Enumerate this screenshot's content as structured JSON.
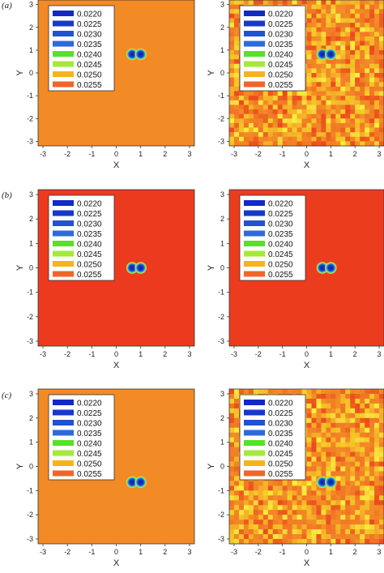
{
  "rows": [
    {
      "label": "(a)"
    },
    {
      "label": "(b)"
    },
    {
      "label": "(c)"
    }
  ],
  "legend_colors": [
    "#1428c8",
    "#1838c8",
    "#2252d0",
    "#2e6ad8",
    "#58e02a",
    "#a6e83a",
    "#f5b41e",
    "#f26428"
  ],
  "chart_data": [
    {
      "type": "heatmap",
      "row": "(a)",
      "column": "left",
      "xlabel": "X",
      "ylabel": "Y",
      "xlim": [
        -3.2,
        3.2
      ],
      "ylim": [
        -3.2,
        3.2
      ],
      "xticks": [
        -3,
        -2,
        -1,
        0,
        1,
        2,
        3
      ],
      "yticks": [
        3,
        2,
        1,
        0,
        -1,
        -2,
        -3
      ],
      "legend": [
        "0.0220",
        "0.0225",
        "0.0230",
        "0.0235",
        "0.0240",
        "0.0245",
        "0.0250",
        "0.0255"
      ],
      "legend_position": "top-left",
      "background": "uniform",
      "background_color": "#f28a26",
      "features": [
        {
          "x": 0.65,
          "y": 0.82
        },
        {
          "x": 1.0,
          "y": 0.82
        }
      ]
    },
    {
      "type": "heatmap",
      "row": "(a)",
      "column": "right",
      "xlabel": "X",
      "ylabel": "Y",
      "xlim": [
        -3.2,
        3.2
      ],
      "ylim": [
        -3.2,
        3.2
      ],
      "xticks": [
        -3,
        -2,
        -1,
        0,
        1,
        2,
        3
      ],
      "yticks": [
        3,
        2,
        1,
        0,
        -1,
        -2,
        -3
      ],
      "legend": [
        "0.0220",
        "0.0225",
        "0.0230",
        "0.0235",
        "0.0240",
        "0.0245",
        "0.0250",
        "0.0255"
      ],
      "legend_position": "top-left",
      "background": "noisy",
      "background_color": "#f07a22",
      "features": [
        {
          "x": 0.65,
          "y": 0.82
        },
        {
          "x": 1.0,
          "y": 0.82
        }
      ]
    },
    {
      "type": "heatmap",
      "row": "(b)",
      "column": "left",
      "xlabel": "X",
      "ylabel": "Y",
      "xlim": [
        -3.2,
        3.2
      ],
      "ylim": [
        -3.2,
        3.2
      ],
      "xticks": [
        -3,
        -2,
        -1,
        0,
        1,
        2,
        3
      ],
      "yticks": [
        3,
        2,
        1,
        0,
        -1,
        -2,
        -3
      ],
      "legend": [
        "0.0220",
        "0.0225",
        "0.0230",
        "0.0235",
        "0.0240",
        "0.0245",
        "0.0250",
        "0.0255"
      ],
      "legend_position": "top-left",
      "background": "uniform",
      "background_color": "#ec3a1e",
      "features": [
        {
          "x": 0.65,
          "y": 0.0
        },
        {
          "x": 1.0,
          "y": 0.0
        }
      ]
    },
    {
      "type": "heatmap",
      "row": "(b)",
      "column": "right",
      "xlabel": "X",
      "ylabel": "Y",
      "xlim": [
        -3.2,
        3.2
      ],
      "ylim": [
        -3.2,
        3.2
      ],
      "xticks": [
        -3,
        -2,
        -1,
        0,
        1,
        2,
        3
      ],
      "yticks": [
        3,
        2,
        1,
        0,
        -1,
        -2,
        -3
      ],
      "legend": [
        "0.0220",
        "0.0225",
        "0.0230",
        "0.0235",
        "0.0240",
        "0.0245",
        "0.0250",
        "0.0255"
      ],
      "legend_position": "top-left",
      "background": "uniform",
      "background_color": "#ec3c1e",
      "features": [
        {
          "x": 0.65,
          "y": 0.0
        },
        {
          "x": 1.0,
          "y": 0.0
        }
      ]
    },
    {
      "type": "heatmap",
      "row": "(c)",
      "column": "left",
      "xlabel": "X",
      "ylabel": "Y",
      "xlim": [
        -3.2,
        3.2
      ],
      "ylim": [
        -3.2,
        3.2
      ],
      "xticks": [
        -3,
        -2,
        -1,
        0,
        1,
        2,
        3
      ],
      "yticks": [
        3,
        2,
        1,
        0,
        -1,
        -2,
        -3
      ],
      "legend": [
        "0.0220",
        "0.0225",
        "0.0230",
        "0.0235",
        "0.0240",
        "0.0245",
        "0.0250",
        "0.0255"
      ],
      "legend_position": "top-left",
      "background": "uniform",
      "background_color": "#f28a26",
      "features": [
        {
          "x": 0.65,
          "y": -0.65
        },
        {
          "x": 1.0,
          "y": -0.65
        }
      ]
    },
    {
      "type": "heatmap",
      "row": "(c)",
      "column": "right",
      "xlabel": "X",
      "ylabel": "Y",
      "xlim": [
        -3.2,
        3.2
      ],
      "ylim": [
        -3.2,
        3.2
      ],
      "xticks": [
        -3,
        -2,
        -1,
        0,
        1,
        2,
        3
      ],
      "yticks": [
        3,
        2,
        1,
        0,
        -1,
        -2,
        -3
      ],
      "legend": [
        "0.0220",
        "0.0225",
        "0.0230",
        "0.0235",
        "0.0240",
        "0.0245",
        "0.0250",
        "0.0255"
      ],
      "legend_position": "top-left",
      "background": "noisy",
      "background_color": "#f07a22",
      "features": [
        {
          "x": 0.65,
          "y": -0.65
        },
        {
          "x": 1.0,
          "y": -0.65
        }
      ]
    }
  ]
}
